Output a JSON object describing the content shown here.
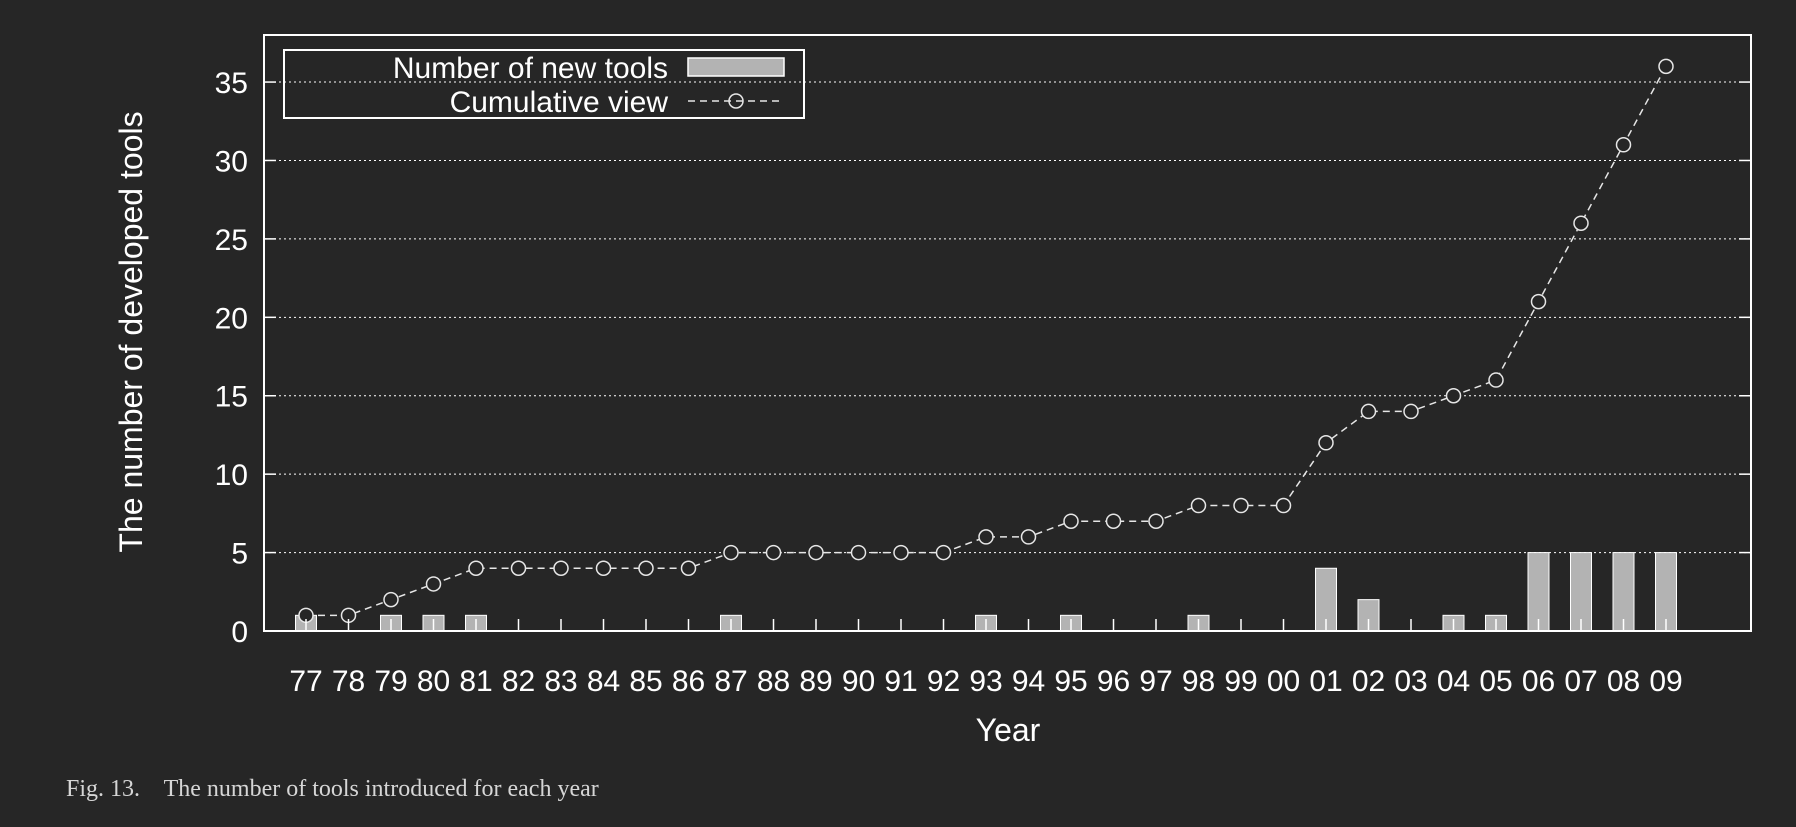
{
  "chart_data": {
    "type": "bar",
    "categories": [
      "77",
      "78",
      "79",
      "80",
      "81",
      "82",
      "83",
      "84",
      "85",
      "86",
      "87",
      "88",
      "89",
      "90",
      "91",
      "92",
      "93",
      "94",
      "95",
      "96",
      "97",
      "98",
      "99",
      "00",
      "01",
      "02",
      "03",
      "04",
      "05",
      "06",
      "07",
      "08",
      "09"
    ],
    "series": [
      {
        "name": "Number of new tools",
        "type": "bar",
        "values": [
          1,
          0,
          1,
          1,
          1,
          0,
          0,
          0,
          0,
          0,
          1,
          0,
          0,
          0,
          0,
          0,
          1,
          0,
          1,
          0,
          0,
          1,
          0,
          0,
          4,
          2,
          0,
          1,
          1,
          5,
          5,
          5,
          5
        ]
      },
      {
        "name": "Cumulative view",
        "type": "line",
        "values": [
          1,
          1,
          2,
          3,
          4,
          4,
          4,
          4,
          4,
          4,
          5,
          5,
          5,
          5,
          5,
          5,
          6,
          6,
          7,
          7,
          7,
          8,
          8,
          8,
          12,
          14,
          14,
          15,
          16,
          21,
          26,
          31,
          36
        ]
      }
    ],
    "xlabel": "Year",
    "ylabel": "The number of developed tools",
    "ylim": [
      0,
      38
    ],
    "yticks": [
      0,
      5,
      10,
      15,
      20,
      25,
      30,
      35
    ],
    "grid": "horizontal-dotted",
    "legend_position": "top-left",
    "colors": {
      "background": "#262626",
      "bars": "#b3b3b3",
      "line": "#e6e6e6",
      "axes": "#ffffff"
    }
  },
  "caption": {
    "label": "Fig. 13.",
    "text": "The number of tools introduced for each year"
  }
}
